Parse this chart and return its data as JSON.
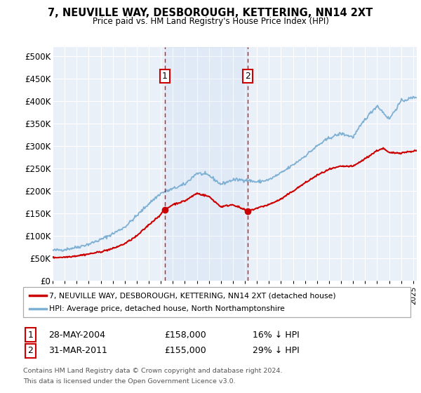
{
  "title": "7, NEUVILLE WAY, DESBOROUGH, KETTERING, NN14 2XT",
  "subtitle": "Price paid vs. HM Land Registry's House Price Index (HPI)",
  "ylabel_ticks": [
    "£0",
    "£50K",
    "£100K",
    "£150K",
    "£200K",
    "£250K",
    "£300K",
    "£350K",
    "£400K",
    "£450K",
    "£500K"
  ],
  "ytick_values": [
    0,
    50000,
    100000,
    150000,
    200000,
    250000,
    300000,
    350000,
    400000,
    450000,
    500000
  ],
  "xlim_start": 1995.0,
  "xlim_end": 2025.3,
  "ylim": [
    0,
    520000
  ],
  "background_color": "#ffffff",
  "plot_bg_color": "#eaf0f8",
  "grid_color": "#ffffff",
  "hpi_color": "#7eb0d4",
  "sale_color": "#cc0000",
  "dashed_color": "#cc0000",
  "purchase1_x": 2004.33,
  "purchase1_y": 158000,
  "purchase1_label": "1",
  "purchase1_date": "28-MAY-2004",
  "purchase1_price": "£158,000",
  "purchase1_hpi": "16% ↓ HPI",
  "purchase2_x": 2011.25,
  "purchase2_y": 155000,
  "purchase2_label": "2",
  "purchase2_date": "31-MAR-2011",
  "purchase2_price": "£155,000",
  "purchase2_hpi": "29% ↓ HPI",
  "legend_line1": "7, NEUVILLE WAY, DESBOROUGH, KETTERING, NN14 2XT (detached house)",
  "legend_line2": "HPI: Average price, detached house, North Northamptonshire",
  "footer1": "Contains HM Land Registry data © Crown copyright and database right 2024.",
  "footer2": "This data is licensed under the Open Government Licence v3.0.",
  "xtick_years": [
    1995,
    1996,
    1997,
    1998,
    1999,
    2000,
    2001,
    2002,
    2003,
    2004,
    2005,
    2006,
    2007,
    2008,
    2009,
    2010,
    2011,
    2012,
    2013,
    2014,
    2015,
    2016,
    2017,
    2018,
    2019,
    2020,
    2021,
    2022,
    2023,
    2024,
    2025
  ],
  "hpi_anchors_x": [
    1995,
    1996,
    1997,
    1998,
    1999,
    2000,
    2001,
    2002,
    2003,
    2004,
    2005,
    2006,
    2007,
    2008,
    2009,
    2010,
    2011,
    2012,
    2013,
    2014,
    2015,
    2016,
    2017,
    2018,
    2019,
    2020,
    2021,
    2022,
    2023,
    2024,
    2025.3
  ],
  "hpi_anchors_y": [
    68000,
    70000,
    75000,
    82000,
    92000,
    105000,
    120000,
    145000,
    172000,
    195000,
    205000,
    215000,
    240000,
    235000,
    215000,
    225000,
    225000,
    220000,
    225000,
    240000,
    258000,
    278000,
    300000,
    318000,
    328000,
    320000,
    360000,
    390000,
    360000,
    400000,
    410000
  ],
  "sale_anchors_x": [
    1995,
    1996,
    1997,
    1998,
    1999,
    2000,
    2001,
    2002,
    2003,
    2004,
    2004.33,
    2005,
    2006,
    2007,
    2008,
    2009,
    2010,
    2011.25,
    2012,
    2013,
    2014,
    2015,
    2016,
    2017,
    2018,
    2019,
    2020,
    2021,
    2022,
    2022.5,
    2023,
    2024,
    2025.3
  ],
  "sale_anchors_y": [
    52000,
    53000,
    56000,
    60000,
    65000,
    72000,
    83000,
    100000,
    125000,
    148000,
    158000,
    170000,
    178000,
    195000,
    188000,
    165000,
    170000,
    155000,
    162000,
    170000,
    182000,
    200000,
    218000,
    235000,
    248000,
    255000,
    255000,
    272000,
    290000,
    295000,
    285000,
    285000,
    290000
  ]
}
